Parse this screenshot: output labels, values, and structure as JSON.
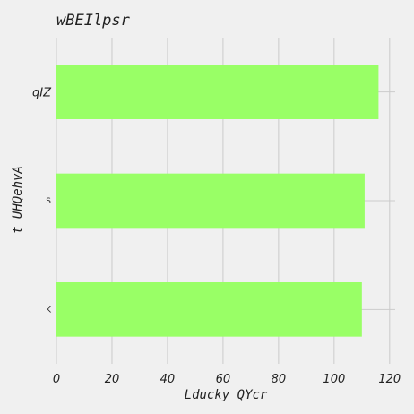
{
  "chart_data": {
    "type": "bar",
    "orientation": "horizontal",
    "title": "wBEIlpsr",
    "xlabel": "Lducky QYcr",
    "ylabel": "t UHQehvA",
    "categories": [
      "qIZ",
      "S",
      "K"
    ],
    "series": [
      {
        "values": [
          116,
          111,
          110
        ]
      }
    ],
    "xlim": [
      0,
      122
    ],
    "xticks": [
      0,
      20,
      40,
      60,
      80,
      100,
      120
    ],
    "grid": true,
    "bar_color": "#99ff66",
    "background": "#f0f0f0"
  }
}
